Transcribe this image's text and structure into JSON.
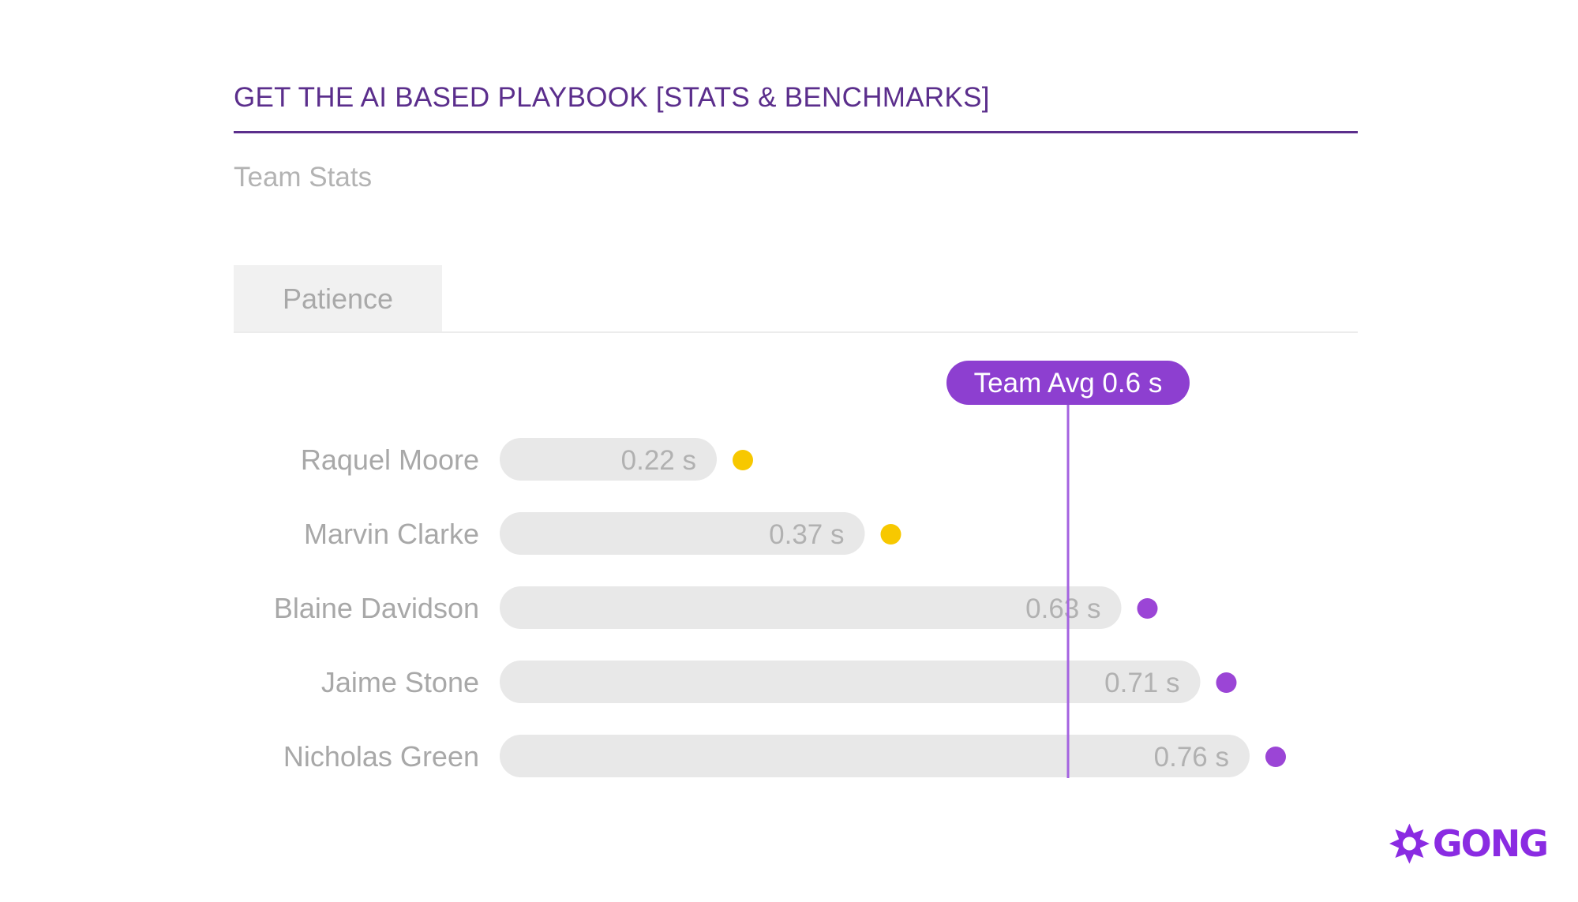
{
  "header": {
    "title": "GET THE AI BASED PLAYBOOK [STATS & BENCHMARKS]"
  },
  "subtitle": "Team Stats",
  "tab": {
    "label": "Patience"
  },
  "chart_data": {
    "type": "bar",
    "orientation": "horizontal",
    "unit": "s",
    "categories": [
      "Raquel Moore",
      "Marvin Clarke",
      "Blaine Davidson",
      "Jaime Stone",
      "Nicholas Green"
    ],
    "values": [
      0.22,
      0.37,
      0.63,
      0.71,
      0.76
    ],
    "value_labels": [
      "0.22 s",
      "0.37 s",
      "0.63 s",
      "0.71 s",
      "0.76 s"
    ],
    "reference_line": {
      "label": "Team Avg 0.6 s",
      "value": 0.6
    },
    "status": [
      "below",
      "below",
      "above",
      "above",
      "above"
    ],
    "colors": {
      "below": "#f7c800",
      "above": "#9b45d6",
      "bar": "#e8e8e8",
      "bar_label": "#b1b1b1",
      "category_label": "#a8a8a8",
      "avg_line": "#a463e0",
      "avg_badge": "#8d3fd0"
    },
    "grid": false,
    "legend": "none"
  },
  "brand": {
    "logo_text": "GONG",
    "color": "#8a2be2"
  }
}
